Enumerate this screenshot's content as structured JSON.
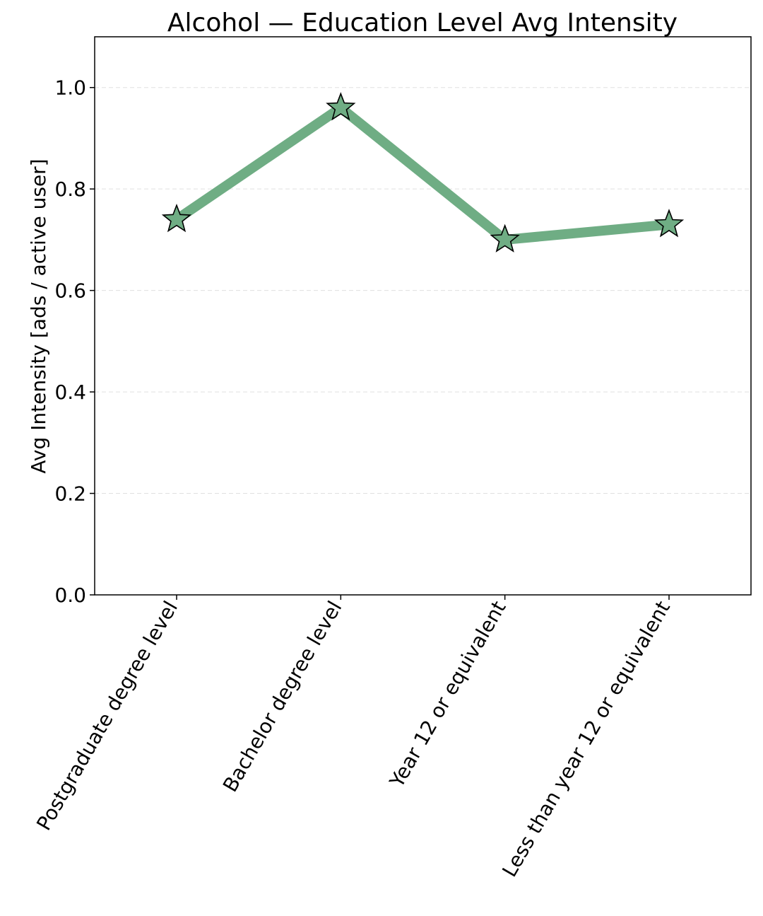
{
  "chart_data": {
    "type": "line",
    "title": "Alcohol — Education Level Avg Intensity",
    "xlabel": "",
    "ylabel": "Avg Intensity [ads / active user]",
    "categories": [
      "Postgraduate degree level",
      "Bachelor degree level",
      "Year 12 or equivalent",
      "Less than year 12 or equivalent"
    ],
    "series": [
      {
        "values": [
          0.74,
          0.96,
          0.7,
          0.73
        ],
        "color": "#6fad84",
        "marker": "star"
      }
    ],
    "ylim": [
      0,
      1.1
    ],
    "yticks": [
      "0.0",
      "0.2",
      "0.4",
      "0.6",
      "0.8",
      "1.0"
    ],
    "grid": true,
    "grid_axis": "y",
    "legend": "none"
  }
}
